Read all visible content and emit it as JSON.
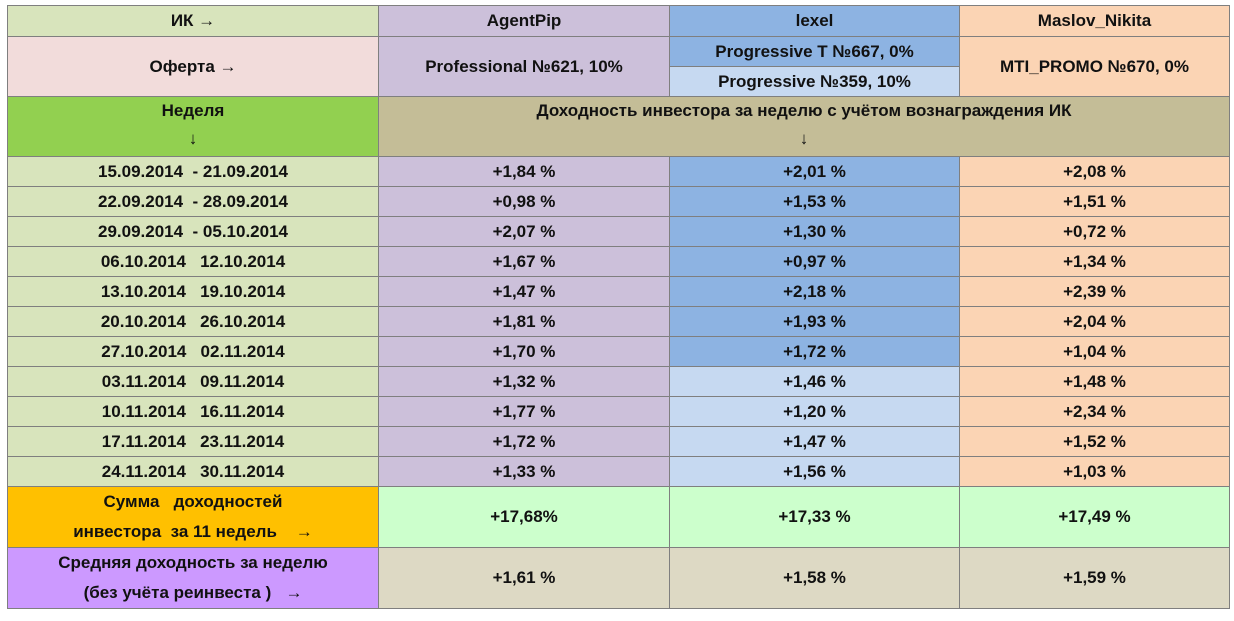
{
  "header": {
    "ik_label": "ИК →",
    "companies": [
      "AgentPip",
      "lexel",
      "Maslov_Nikita"
    ],
    "offer_label": "Оферта →",
    "offer_agentpip": "Professional №621, 10%",
    "offer_lexel_1": "Progressive T №667, 0%",
    "offer_lexel_2": "Progressive №359, 10%",
    "offer_maslov": "MTI_PROMO №670, 0%",
    "week_label": "Неделя",
    "week_arrow": "↓",
    "yield_label": "Доходность инвестора за неделю с учётом вознаграждения ИК",
    "yield_arrow": "↓"
  },
  "rows": [
    {
      "week": "15.09.2014  - 21.09.2014",
      "agentpip": "+1,84 %",
      "lexel": "+2,01 %",
      "maslov": "+2,08 %"
    },
    {
      "week": "22.09.2014  - 28.09.2014",
      "agentpip": "+0,98 %",
      "lexel": "+1,53 %",
      "maslov": "+1,51 %"
    },
    {
      "week": "29.09.2014  - 05.10.2014",
      "agentpip": "+2,07 %",
      "lexel": "+1,30 %",
      "maslov": "+0,72 %"
    },
    {
      "week": "06.10.2014   12.10.2014",
      "agentpip": "+1,67 %",
      "lexel": "+0,97 %",
      "maslov": "+1,34 %"
    },
    {
      "week": "13.10.2014   19.10.2014",
      "agentpip": "+1,47 %",
      "lexel": "+2,18 %",
      "maslov": "+2,39 %"
    },
    {
      "week": "20.10.2014   26.10.2014",
      "agentpip": "+1,81 %",
      "lexel": "+1,93 %",
      "maslov": "+2,04 %"
    },
    {
      "week": "27.10.2014   02.11.2014",
      "agentpip": "+1,70 %",
      "lexel": "+1,72 %",
      "maslov": "+1,04 %"
    },
    {
      "week": "03.11.2014   09.11.2014",
      "agentpip": "+1,32 %",
      "lexel": "+1,46 %",
      "maslov": "+1,48 %"
    },
    {
      "week": "10.11.2014   16.11.2014",
      "agentpip": "+1,77 %",
      "lexel": "+1,20 %",
      "maslov": "+2,34 %"
    },
    {
      "week": "17.11.2014   23.11.2014",
      "agentpip": "+1,72 %",
      "lexel": "+1,47 %",
      "maslov": "+1,52 %"
    },
    {
      "week": "24.11.2014   30.11.2014",
      "agentpip": "+1,33 %",
      "lexel": "+1,56 %",
      "maslov": "+1,03 %"
    }
  ],
  "sum": {
    "label_line1": "Сумма   доходностей",
    "label_line2": "инвестора  за 11 недель    →",
    "agentpip": "+17,68%",
    "lexel": "+17,33 %",
    "maslov": "+17,49 %"
  },
  "avg": {
    "label_line1": "Средняя доходность за неделю",
    "label_line2": "(без учёта реинвеста )   →",
    "agentpip": "+1,61 %",
    "lexel": "+1,58 %",
    "maslov": "+1,59 %"
  },
  "colors": {
    "week_cells": "#d8e4bc",
    "agentpip": "#ccc0da",
    "lexel_dark": "#8db3e2",
    "lexel_light": "#c6d9f1",
    "maslov": "#fbd4b4",
    "offer_label": "#f2dcdb",
    "week_header": "#92d050",
    "yield_header": "#c4bd97",
    "sum_label": "#ffc000",
    "sum_values": "#ccffcc",
    "avg_label": "#cc99ff",
    "avg_values": "#ddd9c4"
  }
}
